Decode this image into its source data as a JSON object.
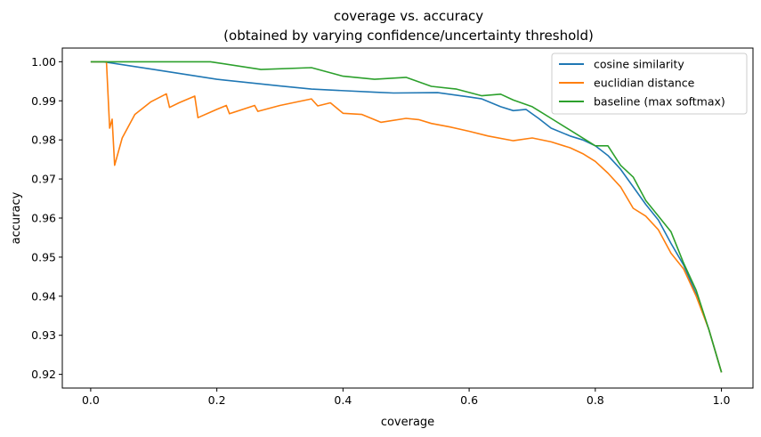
{
  "chart_data": {
    "type": "line",
    "title": "coverage vs. accuracy",
    "subtitle": "(obtained by varying confidence/uncertainty threshold)",
    "xlabel": "coverage",
    "ylabel": "accuracy",
    "xlim": [
      -0.045,
      1.05
    ],
    "ylim": [
      0.9165,
      1.0035
    ],
    "xticks": [
      0.0,
      0.2,
      0.4,
      0.6,
      0.8,
      1.0
    ],
    "xtick_labels": [
      "0.0",
      "0.2",
      "0.4",
      "0.6",
      "0.8",
      "1.0"
    ],
    "yticks": [
      0.92,
      0.93,
      0.94,
      0.95,
      0.96,
      0.97,
      0.98,
      0.99,
      1.0
    ],
    "ytick_labels": [
      "0.92",
      "0.93",
      "0.94",
      "0.95",
      "0.96",
      "0.97",
      "0.98",
      "0.99",
      "1.00"
    ],
    "grid": false,
    "legend_position": "top-right",
    "series": [
      {
        "name": "cosine similarity",
        "color": "#1f77b4",
        "points": [
          [
            0.0,
            1.0
          ],
          [
            0.02,
            1.0
          ],
          [
            0.1,
            0.998
          ],
          [
            0.2,
            0.9955
          ],
          [
            0.3,
            0.9938
          ],
          [
            0.35,
            0.993
          ],
          [
            0.45,
            0.9922
          ],
          [
            0.48,
            0.992
          ],
          [
            0.55,
            0.9921
          ],
          [
            0.6,
            0.991
          ],
          [
            0.62,
            0.9905
          ],
          [
            0.65,
            0.9885
          ],
          [
            0.67,
            0.9875
          ],
          [
            0.69,
            0.9878
          ],
          [
            0.71,
            0.9855
          ],
          [
            0.73,
            0.983
          ],
          [
            0.76,
            0.981
          ],
          [
            0.78,
            0.98
          ],
          [
            0.8,
            0.9785
          ],
          [
            0.82,
            0.976
          ],
          [
            0.84,
            0.9725
          ],
          [
            0.86,
            0.968
          ],
          [
            0.88,
            0.9635
          ],
          [
            0.9,
            0.9595
          ],
          [
            0.92,
            0.9535
          ],
          [
            0.94,
            0.948
          ],
          [
            0.96,
            0.9405
          ],
          [
            0.98,
            0.9315
          ],
          [
            1.0,
            0.9205
          ]
        ]
      },
      {
        "name": "euclidian distance",
        "color": "#ff7f0e",
        "points": [
          [
            0.0,
            1.0
          ],
          [
            0.025,
            1.0
          ],
          [
            0.03,
            0.983
          ],
          [
            0.034,
            0.9853
          ],
          [
            0.038,
            0.9735
          ],
          [
            0.05,
            0.9805
          ],
          [
            0.07,
            0.9865
          ],
          [
            0.095,
            0.9897
          ],
          [
            0.12,
            0.9918
          ],
          [
            0.125,
            0.9883
          ],
          [
            0.14,
            0.9895
          ],
          [
            0.165,
            0.9912
          ],
          [
            0.17,
            0.9857
          ],
          [
            0.2,
            0.9878
          ],
          [
            0.215,
            0.9888
          ],
          [
            0.22,
            0.9867
          ],
          [
            0.26,
            0.9888
          ],
          [
            0.265,
            0.9873
          ],
          [
            0.3,
            0.9888
          ],
          [
            0.35,
            0.9905
          ],
          [
            0.36,
            0.9887
          ],
          [
            0.38,
            0.9895
          ],
          [
            0.4,
            0.9868
          ],
          [
            0.43,
            0.9865
          ],
          [
            0.46,
            0.9845
          ],
          [
            0.5,
            0.9855
          ],
          [
            0.52,
            0.9852
          ],
          [
            0.54,
            0.9842
          ],
          [
            0.57,
            0.9833
          ],
          [
            0.6,
            0.9822
          ],
          [
            0.63,
            0.981
          ],
          [
            0.67,
            0.9798
          ],
          [
            0.7,
            0.9805
          ],
          [
            0.73,
            0.9795
          ],
          [
            0.76,
            0.978
          ],
          [
            0.78,
            0.9765
          ],
          [
            0.8,
            0.9745
          ],
          [
            0.82,
            0.9715
          ],
          [
            0.84,
            0.968
          ],
          [
            0.86,
            0.9625
          ],
          [
            0.88,
            0.9605
          ],
          [
            0.9,
            0.957
          ],
          [
            0.92,
            0.951
          ],
          [
            0.94,
            0.947
          ],
          [
            0.96,
            0.94
          ],
          [
            0.98,
            0.9315
          ],
          [
            1.0,
            0.9205
          ]
        ]
      },
      {
        "name": "baseline (max softmax)",
        "color": "#2ca02c",
        "points": [
          [
            0.0,
            1.0
          ],
          [
            0.1,
            1.0
          ],
          [
            0.19,
            1.0
          ],
          [
            0.27,
            0.998
          ],
          [
            0.35,
            0.9985
          ],
          [
            0.4,
            0.9963
          ],
          [
            0.45,
            0.9955
          ],
          [
            0.5,
            0.996
          ],
          [
            0.54,
            0.9937
          ],
          [
            0.58,
            0.993
          ],
          [
            0.62,
            0.9913
          ],
          [
            0.65,
            0.9917
          ],
          [
            0.67,
            0.9902
          ],
          [
            0.7,
            0.9885
          ],
          [
            0.73,
            0.9855
          ],
          [
            0.76,
            0.9825
          ],
          [
            0.8,
            0.9785
          ],
          [
            0.82,
            0.9785
          ],
          [
            0.84,
            0.9735
          ],
          [
            0.86,
            0.9705
          ],
          [
            0.88,
            0.9645
          ],
          [
            0.9,
            0.9605
          ],
          [
            0.92,
            0.9565
          ],
          [
            0.94,
            0.9485
          ],
          [
            0.96,
            0.9415
          ],
          [
            0.98,
            0.9315
          ],
          [
            1.0,
            0.9205
          ]
        ]
      }
    ]
  }
}
